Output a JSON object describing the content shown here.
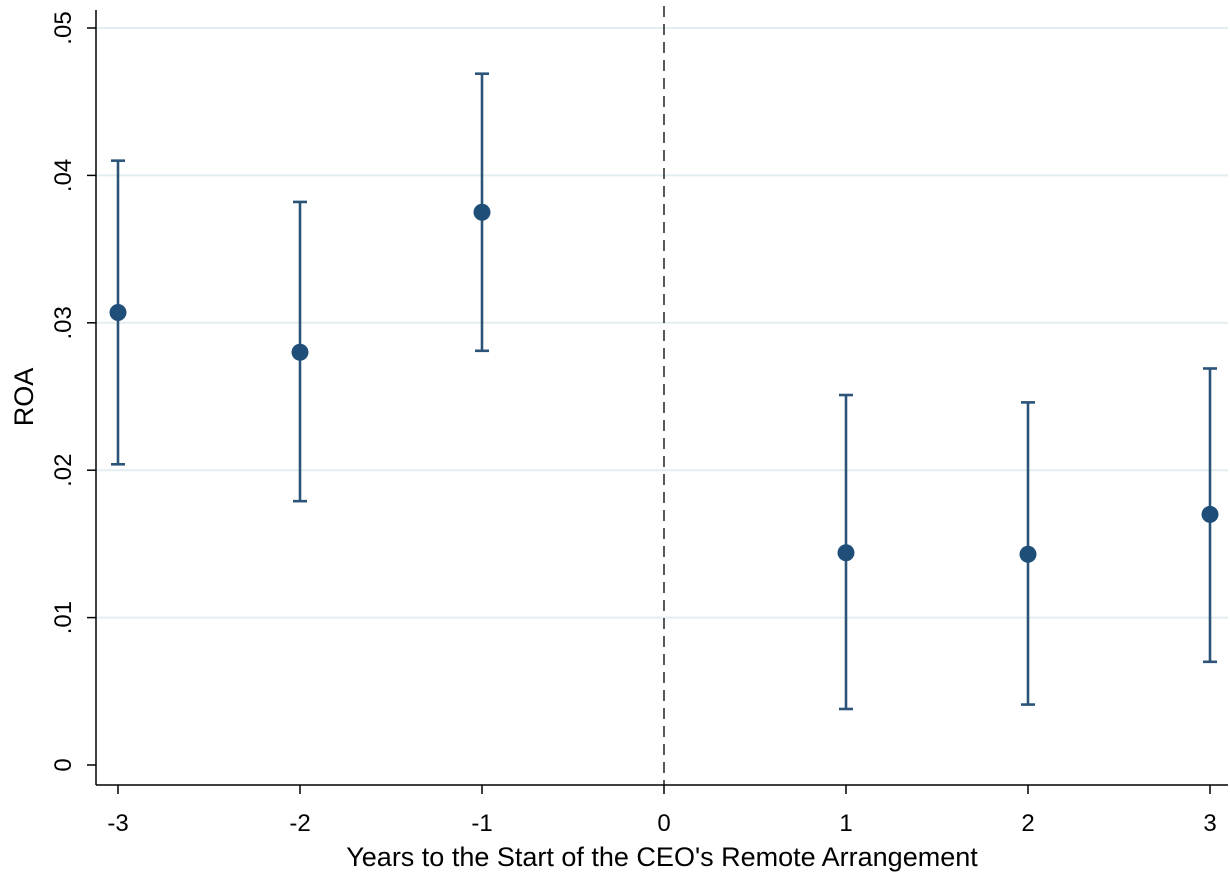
{
  "chart_data": {
    "type": "scatter",
    "title": "",
    "xlabel": "Years to the Start of the CEO's Remote Arrangement",
    "ylabel": "ROA",
    "xlim": [
      -3,
      3
    ],
    "ylim": [
      0,
      0.05
    ],
    "x_ticks": [
      {
        "value": -3,
        "label": "-3"
      },
      {
        "value": -2,
        "label": "-2"
      },
      {
        "value": -1,
        "label": "-1"
      },
      {
        "value": 0,
        "label": "0"
      },
      {
        "value": 1,
        "label": "1"
      },
      {
        "value": 2,
        "label": "2"
      },
      {
        "value": 3,
        "label": "3"
      }
    ],
    "y_ticks": [
      {
        "value": 0,
        "label": "0"
      },
      {
        "value": 0.01,
        "label": ".01"
      },
      {
        "value": 0.02,
        "label": ".02"
      },
      {
        "value": 0.03,
        "label": ".03"
      },
      {
        "value": 0.04,
        "label": ".04"
      },
      {
        "value": 0.05,
        "label": ".05"
      }
    ],
    "grid": "horizontal",
    "reference_line": {
      "x": 0,
      "style": "dashed"
    },
    "series": [
      {
        "x": [
          -3,
          -2,
          -1,
          1,
          2,
          3
        ],
        "y": [
          0.0307,
          0.028,
          0.0375,
          0.0144,
          0.0143,
          0.017
        ],
        "ci_low": [
          0.0204,
          0.0179,
          0.0281,
          0.0038,
          0.0041,
          0.007
        ],
        "ci_high": [
          0.041,
          0.0382,
          0.0469,
          0.0251,
          0.0246,
          0.0269
        ]
      }
    ],
    "colors": {
      "marker": "#1f4e79",
      "errorbar": "#2b5478",
      "grid": "#e3eef1",
      "axis": "#000000"
    }
  }
}
